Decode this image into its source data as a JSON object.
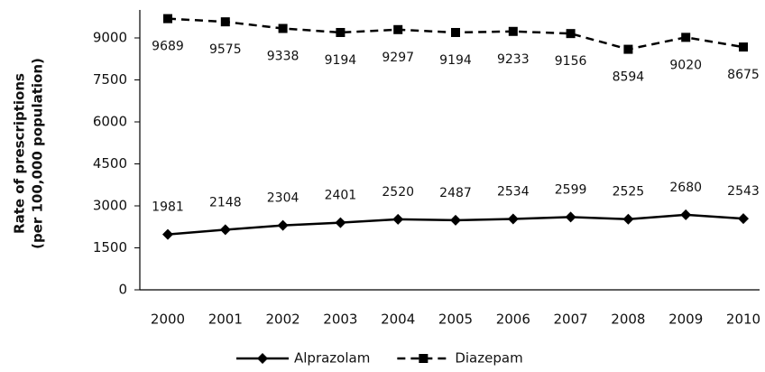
{
  "chart_data": {
    "type": "line",
    "ylabel": [
      "Rate of prescriptions",
      "(per 100,000 population)"
    ],
    "categories": [
      "2000",
      "2001",
      "2002",
      "2003",
      "2004",
      "2005",
      "2006",
      "2007",
      "2008",
      "2009",
      "2010"
    ],
    "series": [
      {
        "name": "Alprazolam",
        "color": "#000000",
        "values": [
          1981,
          2148,
          2304,
          2401,
          2520,
          2487,
          2534,
          2599,
          2525,
          2680,
          2543
        ]
      },
      {
        "name": "Diazepam",
        "color": "#000000",
        "values": [
          9689,
          9575,
          9338,
          9194,
          9297,
          9194,
          9233,
          9156,
          8594,
          9020,
          8675
        ]
      }
    ],
    "ylim": [
      0,
      10000
    ],
    "yticks": [
      0,
      1500,
      3000,
      4500,
      6000,
      7500,
      9000
    ],
    "legend": "bottom"
  }
}
